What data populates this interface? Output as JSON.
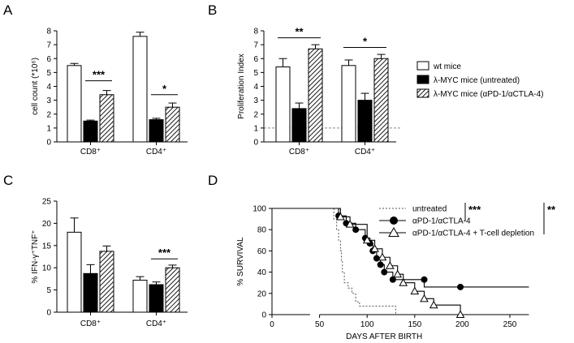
{
  "figure": {
    "legend_bars": [
      {
        "label": "wt mice",
        "fill": "white"
      },
      {
        "label": "λ-MYC mice (untreated)",
        "fill": "black"
      },
      {
        "label": "λ-MYC mice (αPD-1/αCTLA-4)",
        "fill": "hatch"
      }
    ],
    "legend_survival": [
      {
        "label": "untreated",
        "style": "dashed"
      },
      {
        "label": "αPD-1/αCTLA-4",
        "style": "filled-circle"
      },
      {
        "label": "αPD-1/αCTLA-4 + T-cell depletion",
        "style": "open-triangle"
      }
    ],
    "legend_sig": [
      "***",
      "**"
    ]
  },
  "chart_data": [
    {
      "panel": "A",
      "type": "bar",
      "ylabel": "cell count (*10⁶)",
      "ylim": [
        0,
        8
      ],
      "yticks": [
        "0",
        "1",
        "2",
        "3",
        "4",
        "5",
        "6",
        "7",
        "8"
      ],
      "categories": [
        "CD8⁺",
        "CD4⁺"
      ],
      "series": [
        {
          "name": "wt mice",
          "values": [
            5.5,
            7.6
          ],
          "errors": [
            0.15,
            0.3
          ]
        },
        {
          "name": "λ-MYC mice (untreated)",
          "values": [
            1.5,
            1.6
          ],
          "errors": [
            0.07,
            0.1
          ]
        },
        {
          "name": "λ-MYC mice (αPD-1/αCTLA-4)",
          "values": [
            3.4,
            2.5
          ],
          "errors": [
            0.3,
            0.3
          ]
        }
      ],
      "significance": [
        {
          "label": "***",
          "category": 0,
          "from": 1,
          "to": 2,
          "y": 4.4
        },
        {
          "label": "*",
          "category": 1,
          "from": 1,
          "to": 2,
          "y": 3.4
        }
      ]
    },
    {
      "panel": "B",
      "type": "bar",
      "ylabel": "Proliferation Index",
      "ylim": [
        0,
        8
      ],
      "yticks": [
        "0",
        "1",
        "2",
        "3",
        "4",
        "5",
        "6",
        "7",
        "8"
      ],
      "categories": [
        "CD8⁺",
        "CD4⁺"
      ],
      "reference_line": 1,
      "series": [
        {
          "name": "wt mice",
          "values": [
            5.4,
            5.5
          ],
          "errors": [
            0.6,
            0.4
          ]
        },
        {
          "name": "λ-MYC mice (untreated)",
          "values": [
            2.4,
            3.0
          ],
          "errors": [
            0.4,
            0.5
          ]
        },
        {
          "name": "λ-MYC mice (αPD-1/αCTLA-4)",
          "values": [
            6.7,
            6.0
          ],
          "errors": [
            0.3,
            0.3
          ]
        }
      ],
      "significance": [
        {
          "label": "**",
          "category": 0,
          "from": 0,
          "to": 2,
          "y": 7.5
        },
        {
          "label": "*",
          "category": 1,
          "from": 0,
          "to": 2,
          "y": 6.8
        }
      ]
    },
    {
      "panel": "C",
      "type": "bar",
      "ylabel": "% IFN-γ⁺TNF⁺",
      "ylim": [
        0,
        25
      ],
      "yticks": [
        "0",
        "5",
        "10",
        "15",
        "20",
        "25"
      ],
      "categories": [
        "CD8⁺",
        "CD4⁺"
      ],
      "series": [
        {
          "name": "wt mice",
          "values": [
            18,
            7.2
          ],
          "errors": [
            3.2,
            0.8
          ]
        },
        {
          "name": "λ-MYC mice (untreated)",
          "values": [
            8.7,
            6.2
          ],
          "errors": [
            2.0,
            0.6
          ]
        },
        {
          "name": "λ-MYC mice (αPD-1/αCTLA-4)",
          "values": [
            13.7,
            10
          ],
          "errors": [
            1.2,
            0.6
          ]
        }
      ],
      "significance": [
        {
          "label": "***",
          "category": 1,
          "from": 1,
          "to": 2,
          "y": 12
        }
      ]
    },
    {
      "panel": "D",
      "type": "line",
      "subtype": "kaplan-meier",
      "xlabel": "DAYS AFTER BIRTH",
      "ylabel": "% SURVIVAL",
      "xlim": [
        0,
        270
      ],
      "ylim": [
        0,
        100
      ],
      "xticks": [
        "0",
        "50",
        "100",
        "150",
        "200",
        "250"
      ],
      "yticks": [
        "0",
        "20",
        "40",
        "60",
        "80",
        "100"
      ],
      "axis_break": [
        40,
        50
      ],
      "series": [
        {
          "name": "untreated",
          "style": "dashed",
          "steps": [
            [
              0,
              100
            ],
            [
              65,
              100
            ],
            [
              65,
              90
            ],
            [
              68,
              80
            ],
            [
              70,
              70
            ],
            [
              72,
              60
            ],
            [
              73,
              50
            ],
            [
              74,
              40
            ],
            [
              76,
              30
            ],
            [
              80,
              25
            ],
            [
              84,
              20
            ],
            [
              88,
              12
            ],
            [
              92,
              8
            ],
            [
              130,
              8
            ],
            [
              130,
              0
            ]
          ],
          "markers": []
        },
        {
          "name": "αPD-1/αCTLA-4",
          "style": "filled-circle",
          "steps": [
            [
              0,
              100
            ],
            [
              70,
              100
            ],
            [
              70,
              93
            ],
            [
              78,
              86
            ],
            [
              88,
              80
            ],
            [
              98,
              72
            ],
            [
              103,
              67
            ],
            [
              106,
              60
            ],
            [
              110,
              53
            ],
            [
              114,
              47
            ],
            [
              118,
              40
            ],
            [
              127,
              33
            ],
            [
              160,
              33
            ],
            [
              160,
              26
            ],
            [
              270,
              26
            ]
          ],
          "markers": [
            [
              70,
              93
            ],
            [
              78,
              86
            ],
            [
              88,
              80
            ],
            [
              98,
              72
            ],
            [
              103,
              67
            ],
            [
              106,
              60
            ],
            [
              110,
              53
            ],
            [
              114,
              47
            ],
            [
              118,
              40
            ],
            [
              127,
              33
            ],
            [
              160,
              33
            ],
            [
              198,
              26
            ]
          ]
        },
        {
          "name": "αPD-1/αCTLA-4 + T-cell depletion",
          "style": "open-triangle",
          "steps": [
            [
              0,
              100
            ],
            [
              72,
              100
            ],
            [
              72,
              92
            ],
            [
              82,
              85
            ],
            [
              100,
              70
            ],
            [
              108,
              62
            ],
            [
              116,
              54
            ],
            [
              124,
              46
            ],
            [
              132,
              38
            ],
            [
              138,
              30
            ],
            [
              150,
              22
            ],
            [
              160,
              15
            ],
            [
              170,
              9
            ],
            [
              198,
              9
            ],
            [
              198,
              0
            ]
          ],
          "markers": [
            [
              72,
              92
            ],
            [
              82,
              85
            ],
            [
              100,
              70
            ],
            [
              108,
              62
            ],
            [
              116,
              54
            ],
            [
              124,
              46
            ],
            [
              132,
              38
            ],
            [
              138,
              30
            ],
            [
              150,
              22
            ],
            [
              160,
              15
            ],
            [
              170,
              9
            ],
            [
              198,
              0
            ]
          ]
        }
      ]
    }
  ]
}
